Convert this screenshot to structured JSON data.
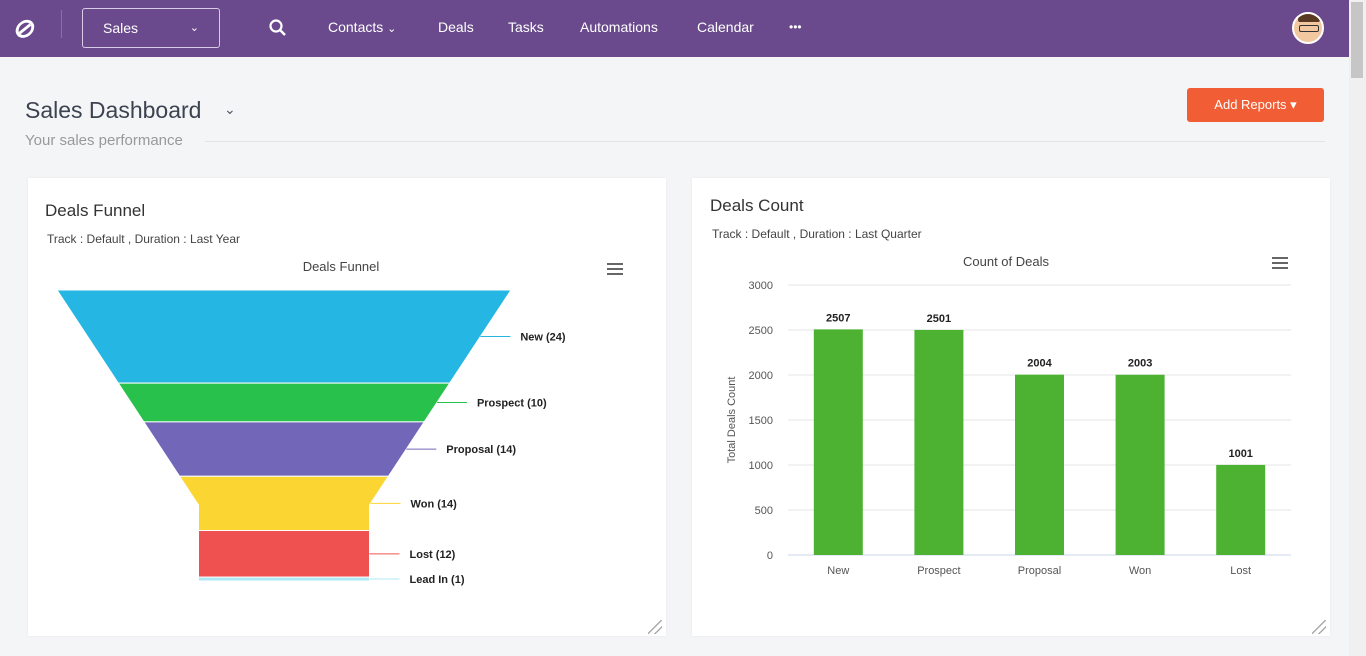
{
  "nav": {
    "pipeline_select": "Sales",
    "items": [
      "Contacts",
      "Deals",
      "Tasks",
      "Automations",
      "Calendar"
    ],
    "more": "•••"
  },
  "page": {
    "title": "Sales Dashboard",
    "subtitle": "Your sales performance",
    "add_reports": "Add Reports ▾"
  },
  "funnel_card": {
    "title": "Deals Funnel",
    "meta": "Track : Default ,  Duration : Last Year"
  },
  "count_card": {
    "title": "Deals Count",
    "meta": "Track : Default , Duration : Last Quarter"
  },
  "chart_data": [
    {
      "type": "funnel",
      "title": "Deals Funnel",
      "categories": [
        "New",
        "Prospect",
        "Proposal",
        "Won",
        "Lost",
        "Lead In"
      ],
      "values": [
        24,
        10,
        14,
        14,
        12,
        1
      ],
      "colors": [
        "#25b6e4",
        "#28c14b",
        "#7266b9",
        "#fbd531",
        "#ef5050",
        "#aee9f3"
      ]
    },
    {
      "type": "bar",
      "title": "Count of Deals",
      "categories": [
        "New",
        "Prospect",
        "Proposal",
        "Won",
        "Lost"
      ],
      "values": [
        2507,
        2501,
        2004,
        2003,
        1001
      ],
      "ylabel": "Total Deals Count",
      "ylim": [
        0,
        3000
      ],
      "yticks": [
        0,
        500,
        1000,
        1500,
        2000,
        2500,
        3000
      ],
      "color": "#4db232",
      "grid": true
    }
  ]
}
